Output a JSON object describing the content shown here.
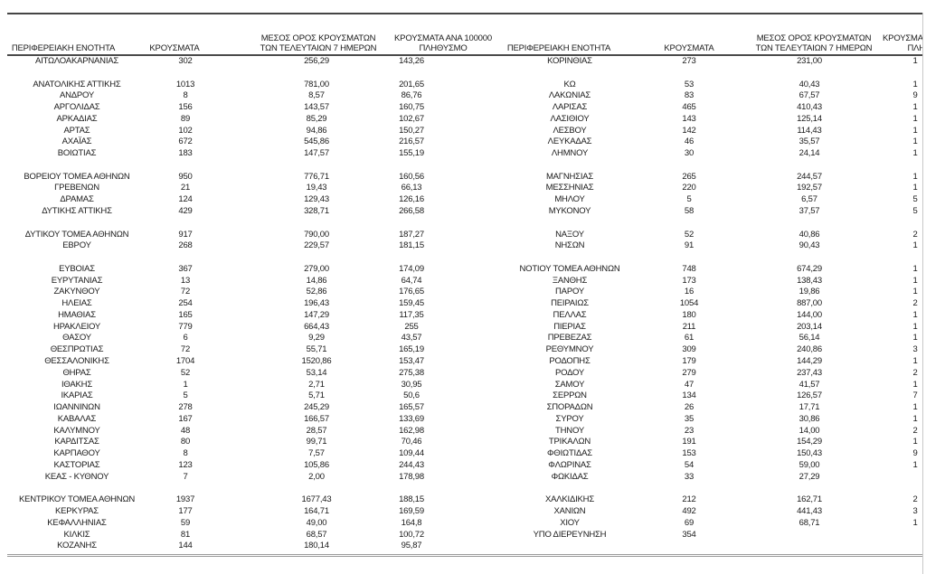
{
  "columns": {
    "region": "ΠΕΡΙΦΕΡΕΙΑΚΗ ΕΝΟΤΗΤΑ",
    "cases": "ΚΡΟΥΣΜΑΤΑ",
    "avg7_line1": "ΜΕΣΟΣ ΟΡΟΣ ΚΡΟΥΣΜΑΤΩΝ",
    "avg7_line2": "ΤΩΝ ΤΕΛΕΥΤΑΙΩΝ 7 ΗΜΕΡΩΝ",
    "per100k_line1": "ΚΡΟΥΣΜΑΤΑ ΑΝΑ 100000",
    "per100k_line2": "ΠΛΗΘΥΣΜΟ"
  },
  "left_panel": {
    "rows": [
      [
        "ΑΙΤΩΛΟΑΚΑΡΝΑΝΙΑΣ",
        "302",
        "256,29",
        "143,26"
      ],
      [
        "",
        "",
        "",
        ""
      ],
      [
        "ΑΝΑΤΟΛΙΚΗΣ ΑΤΤΙΚΗΣ",
        "1013",
        "781,00",
        "201,65"
      ],
      [
        "ΑΝΔΡΟΥ",
        "8",
        "8,57",
        "86,76"
      ],
      [
        "ΑΡΓΟΛΙΔΑΣ",
        "156",
        "143,57",
        "160,75"
      ],
      [
        "ΑΡΚΑΔΙΑΣ",
        "89",
        "85,29",
        "102,67"
      ],
      [
        "ΑΡΤΑΣ",
        "102",
        "94,86",
        "150,27"
      ],
      [
        "ΑΧΑΪΑΣ",
        "672",
        "545,86",
        "216,57"
      ],
      [
        "ΒΟΙΩΤΙΑΣ",
        "183",
        "147,57",
        "155,19"
      ],
      [
        "",
        "",
        "",
        ""
      ],
      [
        "ΒΟΡΕΙΟΥ ΤΟΜΕΑ ΑΘΗΝΩΝ",
        "950",
        "776,71",
        "160,56"
      ],
      [
        "ΓΡΕΒΕΝΩΝ",
        "21",
        "19,43",
        "66,13"
      ],
      [
        "ΔΡΑΜΑΣ",
        "124",
        "129,43",
        "126,16"
      ],
      [
        "ΔΥΤΙΚΗΣ ΑΤΤΙΚΗΣ",
        "429",
        "328,71",
        "266,58"
      ],
      [
        "",
        "",
        "",
        ""
      ],
      [
        "ΔΥΤΙΚΟΥ ΤΟΜΕΑ ΑΘΗΝΩΝ",
        "917",
        "790,00",
        "187,27"
      ],
      [
        "ΕΒΡΟΥ",
        "268",
        "229,57",
        "181,15"
      ],
      [
        "",
        "",
        "",
        ""
      ],
      [
        "ΕΥΒΟΙΑΣ",
        "367",
        "279,00",
        "174,09"
      ],
      [
        "ΕΥΡΥΤΑΝΙΑΣ",
        "13",
        "14,86",
        "64,74"
      ],
      [
        "ΖΑΚΥΝΘΟΥ",
        "72",
        "52,86",
        "176,65"
      ],
      [
        "ΗΛΕΙΑΣ",
        "254",
        "196,43",
        "159,45"
      ],
      [
        "ΗΜΑΘΙΑΣ",
        "165",
        "147,29",
        "117,35"
      ],
      [
        "ΗΡΑΚΛΕΙΟΥ",
        "779",
        "664,43",
        "255"
      ],
      [
        "ΘΑΣΟΥ",
        "6",
        "9,29",
        "43,57"
      ],
      [
        "ΘΕΣΠΡΩΤΙΑΣ",
        "72",
        "55,71",
        "165,19"
      ],
      [
        "ΘΕΣΣΑΛΟΝΙΚΗΣ",
        "1704",
        "1520,86",
        "153,47"
      ],
      [
        "ΘΗΡΑΣ",
        "52",
        "53,14",
        "275,38"
      ],
      [
        "ΙΘΑΚΗΣ",
        "1",
        "2,71",
        "30,95"
      ],
      [
        "ΙΚΑΡΙΑΣ",
        "5",
        "5,71",
        "50,6"
      ],
      [
        "ΙΩΑΝΝΙΝΩΝ",
        "278",
        "245,29",
        "165,57"
      ],
      [
        "ΚΑΒΑΛΑΣ",
        "167",
        "166,57",
        "133,69"
      ],
      [
        "ΚΑΛΥΜΝΟΥ",
        "48",
        "28,57",
        "162,98"
      ],
      [
        "ΚΑΡΔΙΤΣΑΣ",
        "80",
        "99,71",
        "70,46"
      ],
      [
        "ΚΑΡΠΑΘΟΥ",
        "8",
        "7,57",
        "109,44"
      ],
      [
        "ΚΑΣΤΟΡΙΑΣ",
        "123",
        "105,86",
        "244,43"
      ],
      [
        "ΚΕΑΣ - ΚΥΘΝΟΥ",
        "7",
        "2,00",
        "178,98"
      ],
      [
        "",
        "",
        "",
        ""
      ],
      [
        "ΚΕΝΤΡΙΚΟΥ ΤΟΜΕΑ ΑΘΗΝΩΝ",
        "1937",
        "1677,43",
        "188,15"
      ],
      [
        "ΚΕΡΚΥΡΑΣ",
        "177",
        "164,71",
        "169,59"
      ],
      [
        "ΚΕΦΑΛΛΗΝΙΑΣ",
        "59",
        "49,00",
        "164,8"
      ],
      [
        "ΚΙΛΚΙΣ",
        "81",
        "68,57",
        "100,72"
      ],
      [
        "ΚΟΖΑΝΗΣ",
        "144",
        "180,14",
        "95,87"
      ]
    ]
  },
  "right_panel": {
    "rows": [
      [
        "ΚΟΡΙΝΘΙΑΣ",
        "273",
        "231,00",
        "1"
      ],
      [
        "",
        "",
        "",
        ""
      ],
      [
        "ΚΩ",
        "53",
        "40,43",
        "1"
      ],
      [
        "ΛΑΚΩΝΙΑΣ",
        "83",
        "67,57",
        "9"
      ],
      [
        "ΛΑΡΙΣΑΣ",
        "465",
        "410,43",
        "1"
      ],
      [
        "ΛΑΣΙΘΙΟΥ",
        "143",
        "125,14",
        "1"
      ],
      [
        "ΛΕΣΒΟΥ",
        "142",
        "114,43",
        "1"
      ],
      [
        "ΛΕΥΚΑΔΑΣ",
        "46",
        "35,57",
        "1"
      ],
      [
        "ΛΗΜΝΟΥ",
        "30",
        "24,14",
        "1"
      ],
      [
        "",
        "",
        "",
        ""
      ],
      [
        "ΜΑΓΝΗΣΙΑΣ",
        "265",
        "244,57",
        "1"
      ],
      [
        "ΜΕΣΣΗΝΙΑΣ",
        "220",
        "192,57",
        "1"
      ],
      [
        "ΜΗΛΟΥ",
        "5",
        "6,57",
        "5"
      ],
      [
        "ΜΥΚΟΝΟΥ",
        "58",
        "37,57",
        "5"
      ],
      [
        "",
        "",
        "",
        ""
      ],
      [
        "ΝΑΞΟΥ",
        "52",
        "40,86",
        "2"
      ],
      [
        "ΝΗΣΩΝ",
        "91",
        "90,43",
        "1"
      ],
      [
        "",
        "",
        "",
        ""
      ],
      [
        "ΝΟΤΙΟΥ ΤΟΜΕΑ ΑΘΗΝΩΝ",
        "748",
        "674,29",
        "1"
      ],
      [
        "ΞΑΝΘΗΣ",
        "173",
        "138,43",
        "1"
      ],
      [
        "ΠΑΡΟΥ",
        "16",
        "19,86",
        "1"
      ],
      [
        "ΠΕΙΡΑΙΩΣ",
        "1054",
        "887,00",
        "2"
      ],
      [
        "ΠΕΛΛΑΣ",
        "180",
        "144,00",
        "1"
      ],
      [
        "ΠΙΕΡΙΑΣ",
        "211",
        "203,14",
        "1"
      ],
      [
        "ΠΡΕΒΕΖΑΣ",
        "61",
        "56,14",
        "1"
      ],
      [
        "ΡΕΘΥΜΝΟΥ",
        "309",
        "240,86",
        "3"
      ],
      [
        "ΡΟΔΟΠΗΣ",
        "179",
        "144,29",
        "1"
      ],
      [
        "ΡΟΔΟΥ",
        "279",
        "237,43",
        "2"
      ],
      [
        "ΣΑΜΟΥ",
        "47",
        "41,57",
        "1"
      ],
      [
        "ΣΕΡΡΩΝ",
        "134",
        "126,57",
        "7"
      ],
      [
        "ΣΠΟΡΑΔΩΝ",
        "26",
        "17,71",
        "1"
      ],
      [
        "ΣΥΡΟΥ",
        "35",
        "30,86",
        "1"
      ],
      [
        "ΤΗΝΟΥ",
        "23",
        "14,00",
        "2"
      ],
      [
        "ΤΡΙΚΑΛΩΝ",
        "191",
        "154,29",
        "1"
      ],
      [
        "ΦΘΙΩΤΙΔΑΣ",
        "153",
        "150,43",
        "9"
      ],
      [
        "ΦΛΩΡΙΝΑΣ",
        "54",
        "59,00",
        "1"
      ],
      [
        "ΦΩΚΙΔΑΣ",
        "33",
        "27,29",
        ""
      ],
      [
        "",
        "",
        "",
        ""
      ],
      [
        "ΧΑΛΚΙΔΙΚΗΣ",
        "212",
        "162,71",
        "2"
      ],
      [
        "ΧΑΝΙΩΝ",
        "492",
        "441,43",
        "3"
      ],
      [
        "ΧΙΟΥ",
        "69",
        "68,71",
        "1"
      ],
      [
        "ΥΠΟ ΔΙΕΡΕΥΝΗΣΗ",
        "354",
        "",
        ""
      ],
      [
        "",
        "",
        "",
        ""
      ]
    ]
  }
}
